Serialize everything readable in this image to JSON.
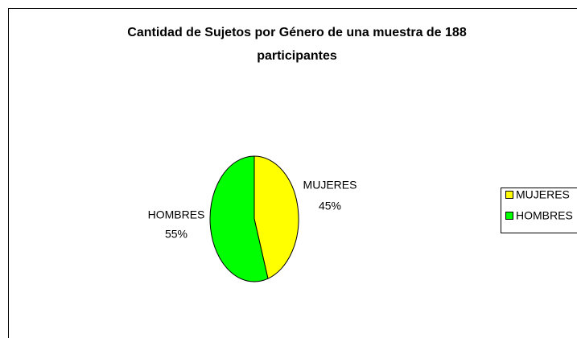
{
  "chart_data": {
    "type": "pie",
    "title": "Cantidad de Sujetos por Género  de una muestra de 188 participantes",
    "categories": [
      "MUJERES",
      "HOMBRES"
    ],
    "values": [
      45,
      55
    ],
    "value_labels": [
      "45%",
      "55%"
    ],
    "colors": [
      "#ffff00",
      "#00ff00"
    ],
    "legend": "right"
  }
}
